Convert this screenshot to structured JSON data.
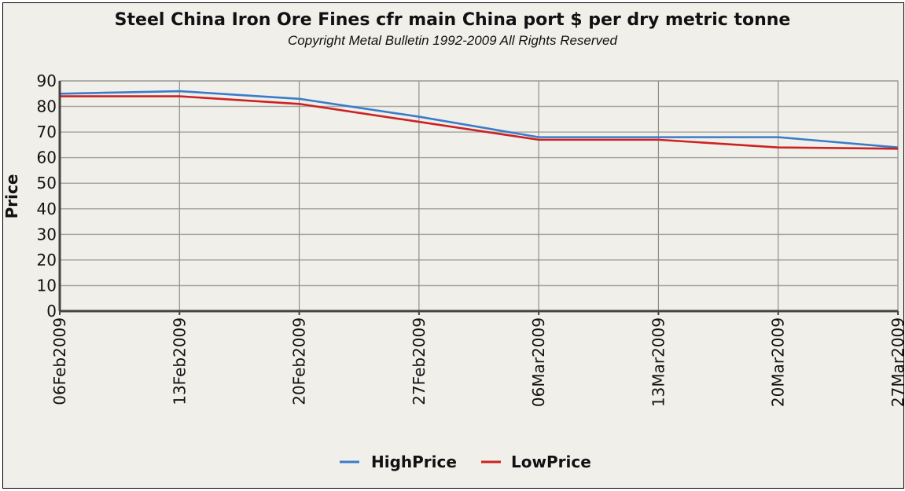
{
  "chart_data": {
    "type": "line",
    "title": "Steel China Iron Ore Fines cfr main China port $ per dry metric tonne",
    "subtitle": "Copyright Metal Bulletin 1992-2009 All Rights Reserved",
    "xlabel": "",
    "ylabel": "Price",
    "categories": [
      "06Feb2009",
      "13Feb2009",
      "20Feb2009",
      "27Feb2009",
      "06Mar2009",
      "13Mar2009",
      "20Mar2009",
      "27Mar2009"
    ],
    "ylim": [
      0,
      90
    ],
    "yticks": [
      "0",
      "10",
      "20",
      "30",
      "40",
      "50",
      "60",
      "70",
      "80",
      "90"
    ],
    "grid": true,
    "legend_position": "bottom",
    "series": [
      {
        "name": "HighPrice",
        "color": "#3a7cc9",
        "values": [
          85,
          86,
          83,
          76,
          68,
          68,
          68,
          64
        ]
      },
      {
        "name": "LowPrice",
        "color": "#cc2222",
        "values": [
          84,
          84,
          81,
          74,
          67,
          67,
          64,
          63.5
        ]
      }
    ]
  }
}
